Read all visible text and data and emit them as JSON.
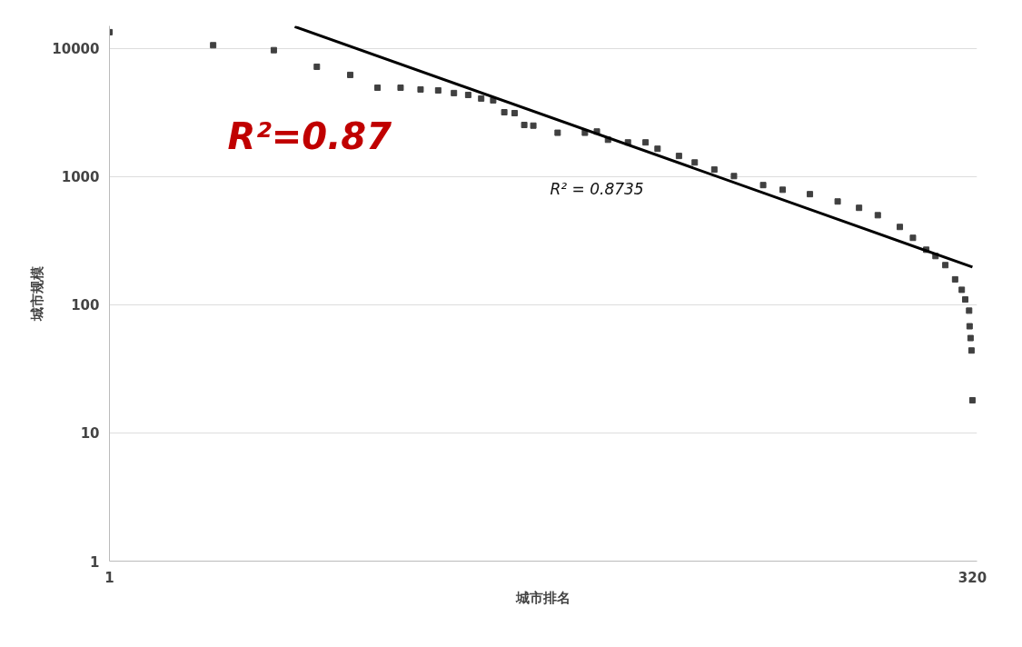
{
  "chart_data": {
    "type": "scatter",
    "xlabel": "城市排名",
    "ylabel": "城市规模",
    "log": "xy",
    "xlim": [
      1,
      330
    ],
    "ylim": [
      1,
      15000
    ],
    "xticks": [
      1,
      320
    ],
    "yticks": [
      1,
      10,
      100,
      1000,
      10000
    ],
    "grid": "y",
    "marker": "square",
    "annotations": [
      "R²=0.87",
      "R² = 0.8735"
    ],
    "series": [
      {
        "color": "#404040",
        "x": [
          1,
          2,
          3,
          4,
          5,
          6,
          7,
          8,
          9,
          10,
          11,
          12,
          13,
          14,
          15,
          16,
          17,
          20,
          24,
          26,
          28,
          32,
          36,
          39,
          45,
          50,
          57,
          65,
          79,
          90,
          108,
          130,
          150,
          170,
          197,
          215,
          235,
          250,
          267,
          285,
          298,
          305,
          313,
          314,
          316,
          318,
          320
        ],
        "values": [
          13400,
          10600,
          9700,
          7200,
          6220,
          4940,
          4940,
          4790,
          4710,
          4490,
          4340,
          4070,
          3940,
          3180,
          3130,
          2530,
          2500,
          2200,
          2200,
          2250,
          1940,
          1850,
          1850,
          1650,
          1450,
          1290,
          1135,
          1010,
          859,
          790,
          730,
          640,
          571,
          500,
          405,
          333,
          269,
          240,
          204,
          158,
          131,
          110,
          90,
          68,
          55,
          44,
          18
        ]
      },
      {
        "type": "line",
        "color": "#000000",
        "x": [
          3.45,
          320
        ],
        "values": [
          14800,
          197
        ],
        "marker": "none"
      }
    ]
  }
}
